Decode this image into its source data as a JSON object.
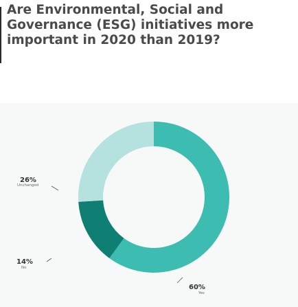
{
  "header": {
    "title": "Are Environmental, Social and Governance (ESG) initiatives more important in 2020 than 2019?"
  },
  "chart_data": {
    "type": "pie",
    "donut": true,
    "title": "",
    "slices": [
      {
        "label": "Yes",
        "value": 60,
        "display": "60%",
        "color": "#3dbcb1"
      },
      {
        "label": "No",
        "value": 14,
        "display": "14%",
        "color": "#0f7f73"
      },
      {
        "label": "Unchanged",
        "value": 26,
        "display": "26%",
        "color": "#b5e2de"
      }
    ],
    "start_angle_deg": 0,
    "direction": "clockwise",
    "legend": "none"
  }
}
